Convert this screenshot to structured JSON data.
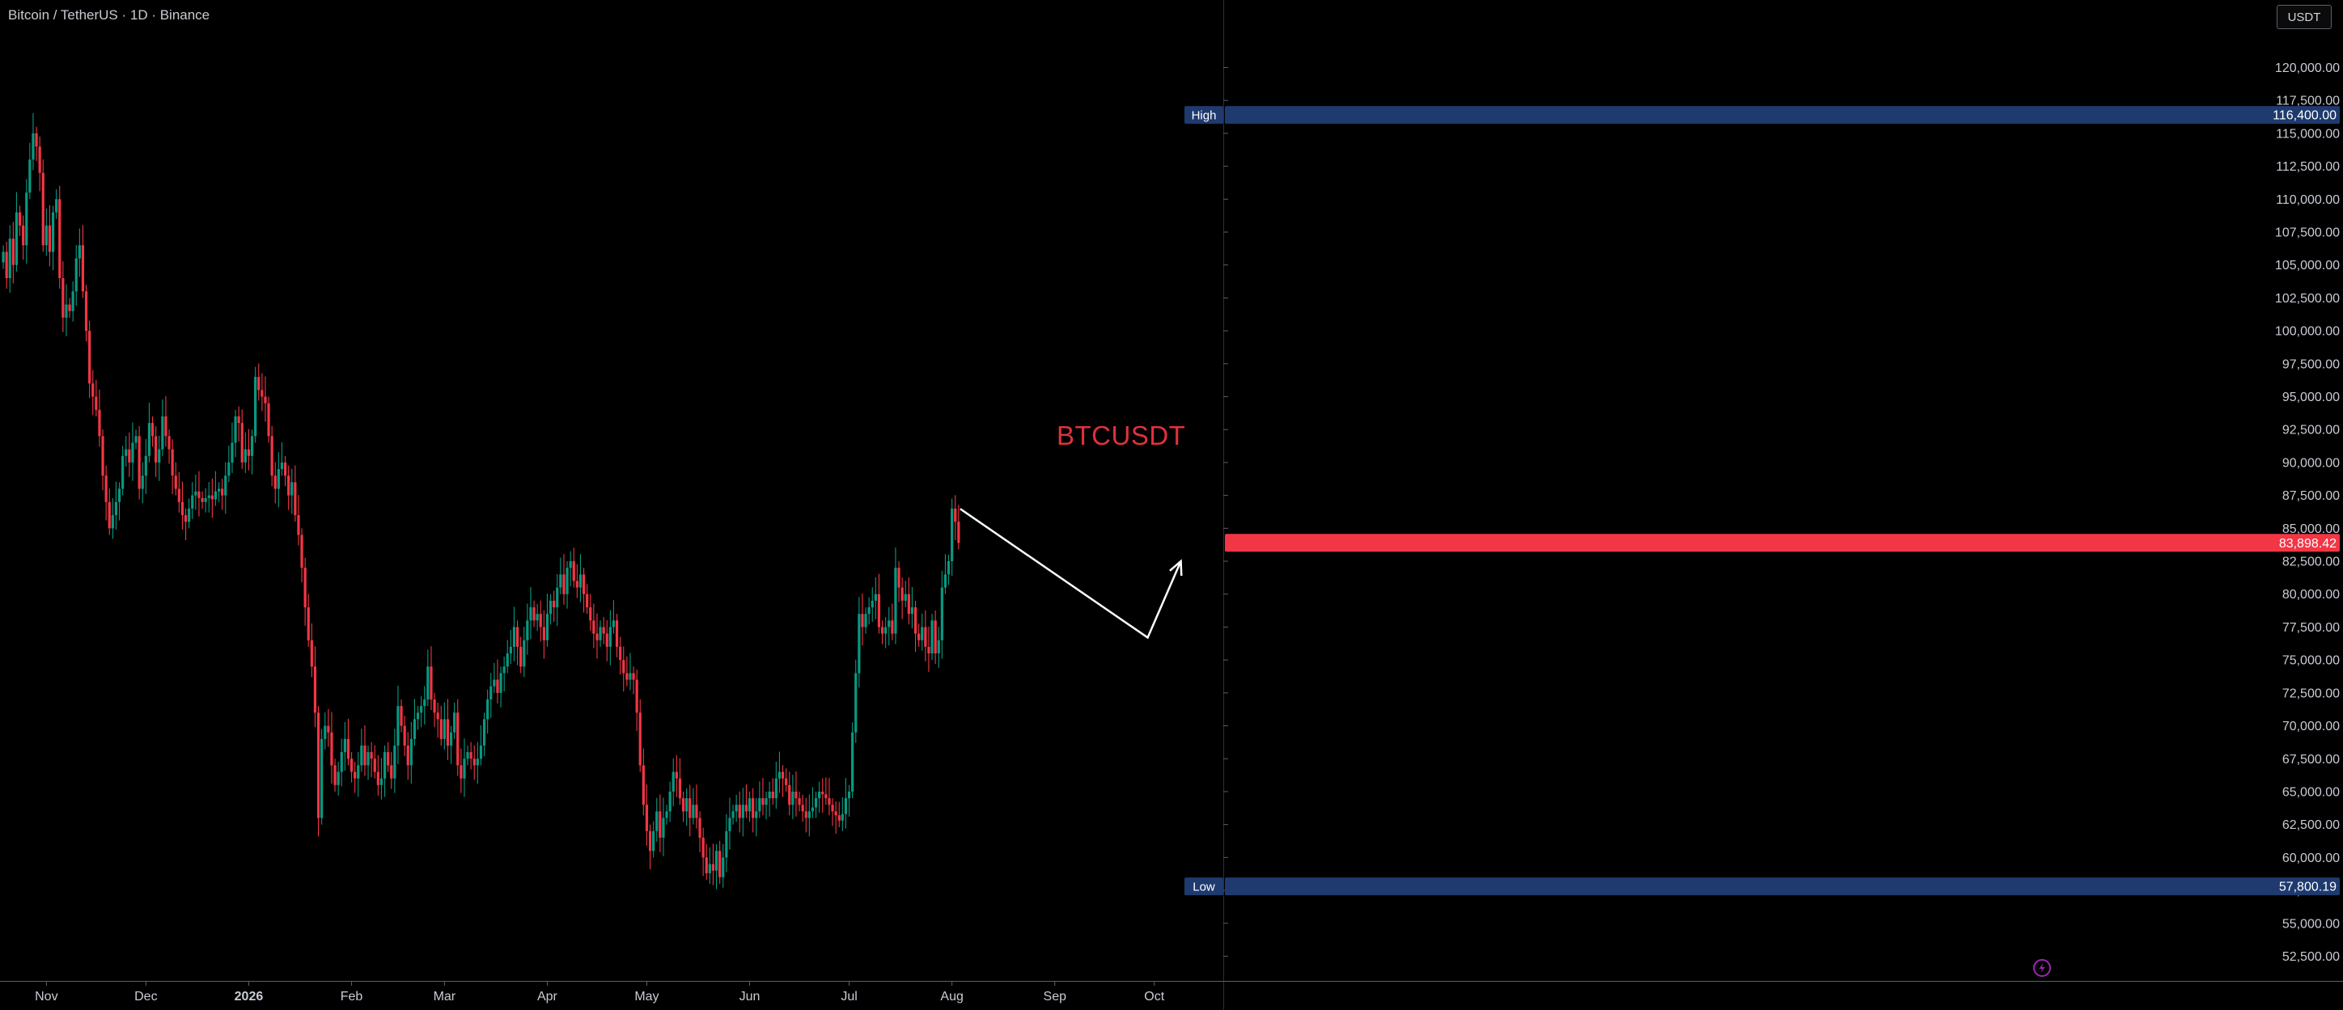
{
  "header": {
    "symbol_title": "Bitcoin / TetherUS · 1D · Binance",
    "currency": "USDT"
  },
  "watermark": "BTCUSDT",
  "colors": {
    "background": "#000000",
    "up": "#089981",
    "down": "#f23645",
    "axis_text": "#c9ccd4",
    "hi_lo_tag": "#1e3a6e",
    "price_tag": "#f23645",
    "projection": "#ffffff"
  },
  "chart_data": {
    "type": "candlestick",
    "interval": "1D",
    "title": "Bitcoin / TetherUS · 1D · Binance",
    "xlabel": "",
    "ylabel": "",
    "ylim": [
      51700,
      123500
    ],
    "y_ticks": [
      52500,
      55000,
      57500,
      60000,
      62500,
      65000,
      67500,
      70000,
      72500,
      75000,
      77500,
      80000,
      82500,
      85000,
      87500,
      90000,
      92500,
      95000,
      97500,
      100000,
      102500,
      105000,
      107500,
      110000,
      112500,
      115000,
      117500,
      120000
    ],
    "y_tick_labels": [
      "52,500.00",
      "55,000.00",
      "57,500.00",
      "60,000.00",
      "62,500.00",
      "65,000.00",
      "67,500.00",
      "70,000.00",
      "72,500.00",
      "75,000.00",
      "77,500.00",
      "80,000.00",
      "82,500.00",
      "85,000.00",
      "87,500.00",
      "90,000.00",
      "92,500.00",
      "95,000.00",
      "97,500.00",
      "100,000.00",
      "102,500.00",
      "105,000.00",
      "107,500.00",
      "110,000.00",
      "112,500.00",
      "115,000.00",
      "117,500.00",
      "120,000.00"
    ],
    "x_ticks": [
      {
        "label": "Nov",
        "bar": 13,
        "bold": false
      },
      {
        "label": "Dec",
        "bar": 43,
        "bold": false
      },
      {
        "label": "2026",
        "bar": 74,
        "bold": true
      },
      {
        "label": "Feb",
        "bar": 105,
        "bold": false
      },
      {
        "label": "Mar",
        "bar": 133,
        "bold": false
      },
      {
        "label": "Apr",
        "bar": 164,
        "bold": false
      },
      {
        "label": "May",
        "bar": 194,
        "bold": false
      },
      {
        "label": "Jun",
        "bar": 225,
        "bold": false
      },
      {
        "label": "Jul",
        "bar": 255,
        "bold": false
      },
      {
        "label": "Aug",
        "bar": 286,
        "bold": false
      },
      {
        "label": "Sep",
        "bar": 317,
        "bold": false
      },
      {
        "label": "Oct",
        "bar": 347,
        "bold": false
      }
    ],
    "high": {
      "label": "High",
      "value": 116400,
      "text": "116,400.00"
    },
    "low": {
      "label": "Low",
      "value": 57800.19,
      "text": "57,800.19"
    },
    "last_price": {
      "value": 83898.42,
      "text": "83,898.42"
    },
    "closes": [
      106000,
      104000,
      107000,
      105000,
      109000,
      108000,
      106500,
      110500,
      113000,
      115000,
      114000,
      112000,
      106500,
      108000,
      106000,
      109000,
      110000,
      104000,
      101000,
      102000,
      101500,
      103000,
      105500,
      106500,
      103000,
      100000,
      96000,
      95000,
      94000,
      92000,
      89000,
      87000,
      85000,
      86000,
      87000,
      88000,
      90500,
      91000,
      90000,
      91500,
      92000,
      88000,
      89000,
      90500,
      93000,
      92000,
      90000,
      91000,
      93500,
      92000,
      91000,
      89000,
      88000,
      87000,
      86000,
      85500,
      86500,
      87500,
      87800,
      87300,
      87000,
      87300,
      87500,
      87200,
      87800,
      88000,
      87500,
      89000,
      90000,
      91500,
      93500,
      93000,
      90000,
      91000,
      90500,
      92000,
      96500,
      95500,
      95000,
      94500,
      92000,
      89000,
      88000,
      89500,
      90000,
      89000,
      87500,
      88500,
      86000,
      84500,
      82000,
      79000,
      76500,
      74500,
      71000,
      63000,
      69000,
      70000,
      69500,
      67000,
      65500,
      66500,
      68000,
      69000,
      67500,
      66500,
      66000,
      67000,
      68500,
      67000,
      68000,
      67500,
      66500,
      65500,
      66000,
      68000,
      67000,
      66000,
      68500,
      71500,
      70000,
      68500,
      67000,
      69000,
      70500,
      71000,
      71500,
      72000,
      74500,
      72000,
      71000,
      70500,
      69000,
      70500,
      68500,
      69500,
      71000,
      67000,
      66000,
      67500,
      68000,
      67500,
      67000,
      67500,
      68500,
      70500,
      72000,
      73000,
      73500,
      72500,
      74000,
      74500,
      75500,
      76000,
      77500,
      76000,
      74500,
      76500,
      78000,
      79000,
      78000,
      78500,
      77500,
      76500,
      78500,
      79500,
      79000,
      80500,
      81500,
      80000,
      82000,
      82500,
      81000,
      80500,
      81500,
      80000,
      79000,
      78000,
      77000,
      76500,
      77500,
      77000,
      76000,
      77500,
      78000,
      76000,
      75000,
      74000,
      73500,
      74000,
      73500,
      71000,
      67000,
      64000,
      62000,
      60500,
      62000,
      63500,
      61500,
      63000,
      63500,
      65000,
      66500,
      66000,
      64500,
      63500,
      64500,
      63000,
      64000,
      63000,
      61500,
      60000,
      58800,
      59500,
      59000,
      60500,
      58500,
      60000,
      62000,
      63000,
      63500,
      64000,
      63000,
      64000,
      63500,
      64500,
      63000,
      63500,
      64500,
      64000,
      64500,
      65000,
      64500,
      66000,
      66500,
      66000,
      65500,
      64000,
      65000,
      64500,
      64000,
      63500,
      63000,
      63500,
      63800,
      64500,
      65000,
      64800,
      64500,
      64000,
      63500,
      63200,
      62800,
      63300,
      64500,
      65000,
      69500,
      74000,
      78500,
      77500,
      78500,
      79000,
      79500,
      80000,
      77500,
      77000,
      77500,
      78000,
      77000,
      82000,
      80500,
      79500,
      80000,
      78500,
      79000,
      77000,
      76500,
      77500,
      76000,
      75500,
      78000,
      75500,
      76500,
      80500,
      81500,
      82500,
      86500,
      85500,
      83898.42
    ],
    "projection": [
      {
        "bar": 345.5,
        "price": 76700
      },
      {
        "bar": 355.5,
        "price": 82500
      }
    ]
  }
}
